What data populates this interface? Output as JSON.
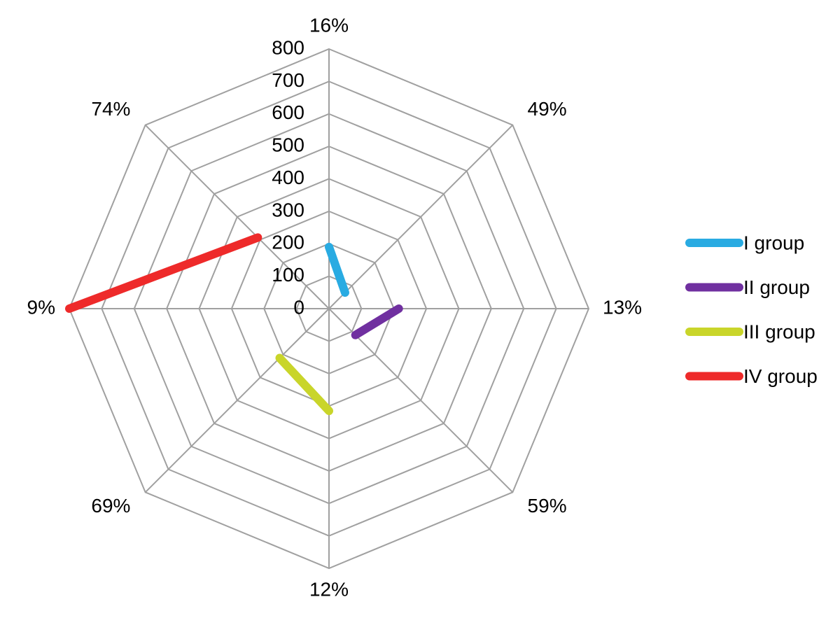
{
  "chart_data": {
    "type": "radar",
    "categories": [
      "16%",
      "49%",
      "13%",
      "59%",
      "12%",
      "69%",
      "9%",
      "74%"
    ],
    "ylim": [
      0,
      800
    ],
    "yticks": [
      0,
      100,
      200,
      300,
      400,
      500,
      600,
      700,
      800
    ],
    "grid": true,
    "legend": "right",
    "series": [
      {
        "name": "I group",
        "color": "#29abe2",
        "values": [
          190,
          70,
          null,
          null,
          null,
          null,
          null,
          null
        ]
      },
      {
        "name": "II group",
        "color": "#7030a0",
        "values": [
          null,
          null,
          215,
          115,
          null,
          null,
          null,
          null
        ]
      },
      {
        "name": "III group",
        "color": "#c9d52a",
        "values": [
          null,
          null,
          null,
          null,
          315,
          215,
          null,
          null
        ]
      },
      {
        "name": "IV group",
        "color": "#ee2a2a",
        "values": [
          null,
          null,
          null,
          null,
          null,
          null,
          800,
          310
        ]
      }
    ]
  }
}
